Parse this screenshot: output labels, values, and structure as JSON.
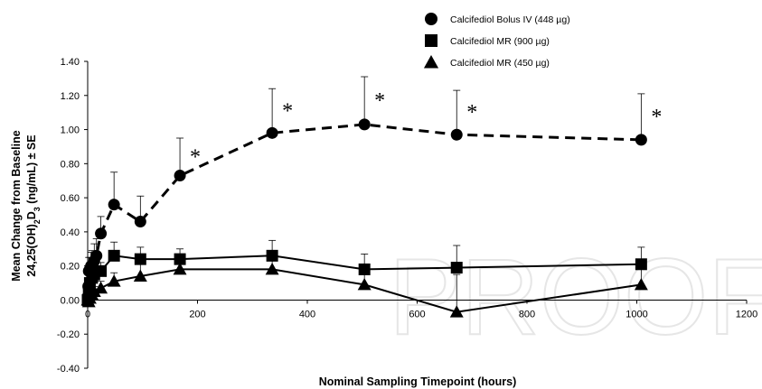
{
  "chart_data": {
    "type": "line",
    "xlabel": "Nominal Sampling Timepoint (hours)",
    "ylabel_line1": "Mean Change from Baseline",
    "ylabel_line2_parts": [
      "24,25(OH)",
      "2",
      "D",
      "3",
      " (ng/mL) ± SE"
    ],
    "xlim": [
      0,
      1200
    ],
    "ylim": [
      -0.4,
      1.4
    ],
    "x_ticks": [
      "0",
      "200",
      "400",
      "600",
      "800",
      "1000",
      "1200"
    ],
    "y_ticks": [
      "-0.40",
      "-0.20",
      "0.00",
      "0.20",
      "0.40",
      "0.60",
      "0.80",
      "1.00",
      "1.20",
      "1.40"
    ],
    "legend_position": "top-right",
    "watermark": "PROOF",
    "series": [
      {
        "name": "Calcifediol Bolus IV (448 µg)",
        "marker": "circle",
        "line_style": "dashed",
        "points": [
          {
            "x": 0,
            "y": 0.02
          },
          {
            "x": 1,
            "y": 0.08
          },
          {
            "x": 2,
            "y": 0.17
          },
          {
            "x": 4,
            "y": 0.18
          },
          {
            "x": 6,
            "y": 0.2
          },
          {
            "x": 8,
            "y": 0.2
          },
          {
            "x": 12,
            "y": 0.23
          },
          {
            "x": 16,
            "y": 0.26
          },
          {
            "x": 24,
            "y": 0.39
          },
          {
            "x": 48,
            "y": 0.56
          },
          {
            "x": 96,
            "y": 0.46
          },
          {
            "x": 168,
            "y": 0.73
          },
          {
            "x": 336,
            "y": 0.98
          },
          {
            "x": 504,
            "y": 1.03
          },
          {
            "x": 672,
            "y": 0.97
          },
          {
            "x": 1008,
            "y": 0.94
          }
        ],
        "se": [
          0.02,
          0.04,
          0.08,
          0.07,
          0.08,
          0.09,
          0.1,
          0.1,
          0.1,
          0.19,
          0.15,
          0.22,
          0.26,
          0.28,
          0.26,
          0.27
        ],
        "asterisks_at_x": [
          168,
          336,
          504,
          672,
          1008
        ]
      },
      {
        "name": "Calcifediol MR (900 µg)",
        "marker": "square",
        "line_style": "solid",
        "points": [
          {
            "x": 0,
            "y": 0.0
          },
          {
            "x": 2,
            "y": 0.05
          },
          {
            "x": 4,
            "y": 0.1
          },
          {
            "x": 8,
            "y": 0.13
          },
          {
            "x": 12,
            "y": 0.15
          },
          {
            "x": 24,
            "y": 0.17
          },
          {
            "x": 48,
            "y": 0.26
          },
          {
            "x": 96,
            "y": 0.24
          },
          {
            "x": 168,
            "y": 0.24
          },
          {
            "x": 336,
            "y": 0.26
          },
          {
            "x": 504,
            "y": 0.18
          },
          {
            "x": 672,
            "y": 0.19
          },
          {
            "x": 1008,
            "y": 0.21
          }
        ],
        "se": [
          0.01,
          0.02,
          0.03,
          0.03,
          0.04,
          0.05,
          0.08,
          0.07,
          0.06,
          0.09,
          0.09,
          0.13,
          0.1
        ]
      },
      {
        "name": "Calcifediol MR (450 µg)",
        "marker": "triangle",
        "line_style": "solid",
        "points": [
          {
            "x": 0,
            "y": 0.0
          },
          {
            "x": 2,
            "y": -0.01
          },
          {
            "x": 4,
            "y": 0.01
          },
          {
            "x": 8,
            "y": 0.03
          },
          {
            "x": 12,
            "y": 0.05
          },
          {
            "x": 24,
            "y": 0.07
          },
          {
            "x": 48,
            "y": 0.11
          },
          {
            "x": 96,
            "y": 0.14
          },
          {
            "x": 168,
            "y": 0.18
          },
          {
            "x": 336,
            "y": 0.18
          },
          {
            "x": 504,
            "y": 0.09
          },
          {
            "x": 672,
            "y": -0.07
          },
          {
            "x": 1008,
            "y": 0.09
          }
        ],
        "se": [
          0.01,
          0.02,
          0.02,
          0.03,
          0.03,
          0.04,
          0.05,
          0.07,
          0.08,
          0.05,
          0.08,
          0.22,
          0.1
        ]
      }
    ]
  }
}
